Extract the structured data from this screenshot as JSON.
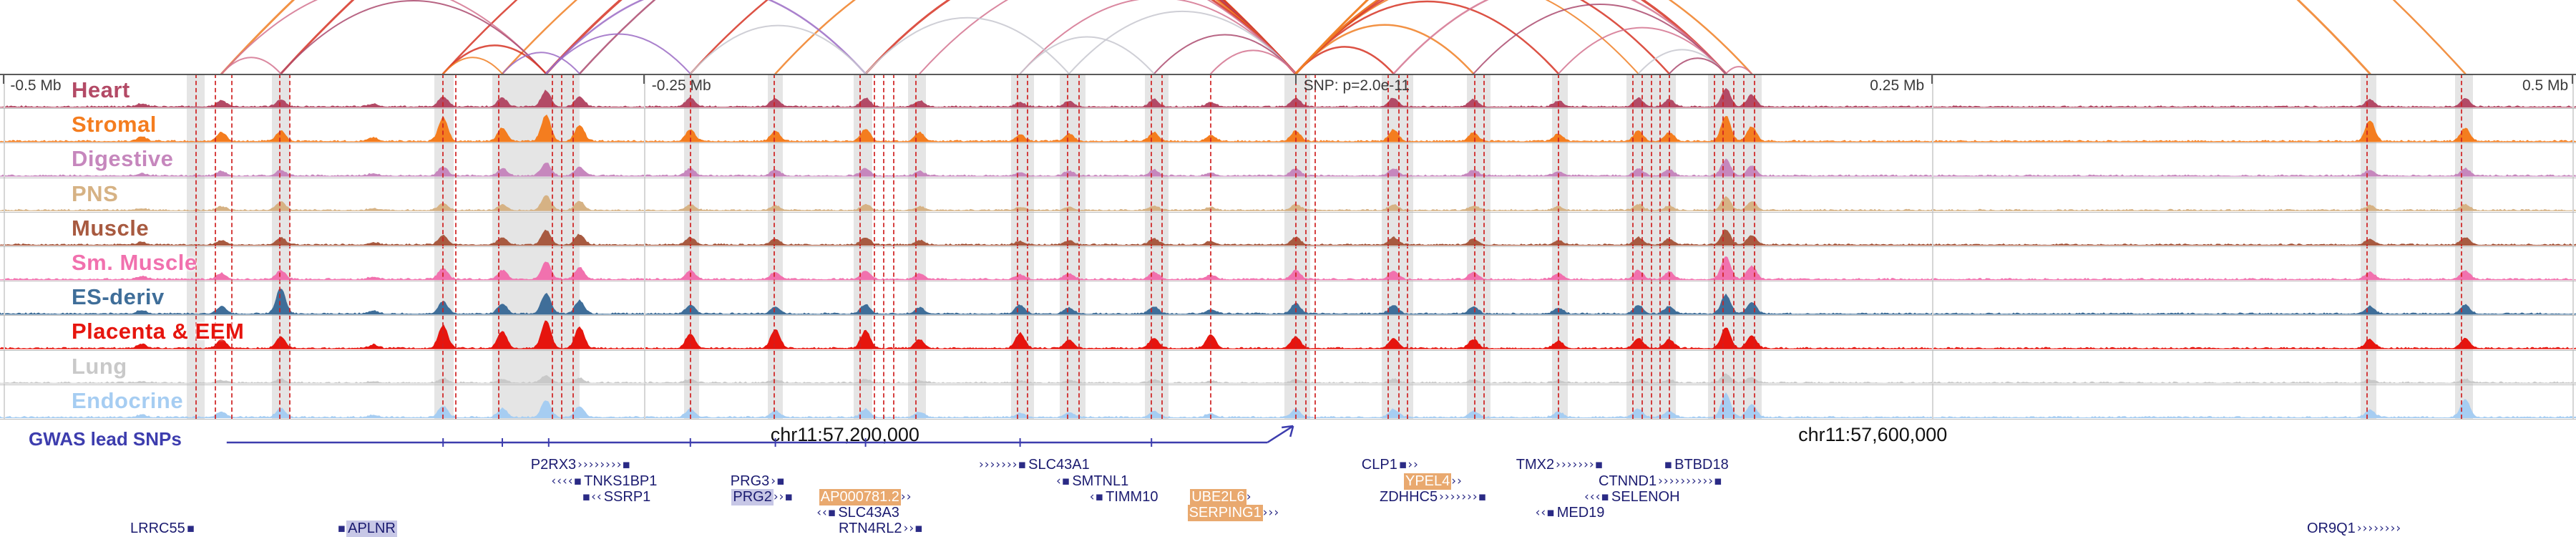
{
  "chart_data": {
    "type": "genome-tracks",
    "title": "Chromatin interaction and signal tracks around GWAS lead SNP",
    "ruler_ticks": [
      {
        "label": "-0.5 Mb",
        "x": 0.004,
        "anchor": "start"
      },
      {
        "label": "-0.25 Mb",
        "x": 0.253,
        "anchor": "start"
      },
      {
        "label": "SNP: p=2.0e-11",
        "x": 0.506,
        "anchor": "start"
      },
      {
        "label": "0.25 Mb",
        "x": 0.747,
        "anchor": "end"
      },
      {
        "label": "0.5 Mb",
        "x": 0.997,
        "anchor": "end"
      }
    ],
    "tick_marks": [
      0.0015,
      0.25,
      0.503,
      0.75,
      0.9985
    ],
    "grid_lines": [
      0.0015,
      0.25,
      0.75,
      0.9985
    ],
    "coordinate_labels": [
      {
        "label": "chr11:57,200,000",
        "x": 0.328
      },
      {
        "label": "chr11:57,600,000",
        "x": 0.727
      }
    ],
    "gwas_track": {
      "label": "GWAS lead SNPs",
      "color": "#3d3dae",
      "line_start": 0.088,
      "line_end": 0.492,
      "arrow_x": 0.502,
      "ticks": [
        0.172,
        0.195,
        0.213,
        0.268,
        0.301,
        0.336,
        0.396,
        0.447
      ]
    },
    "peak_positions": [
      0.055,
      0.086,
      0.109,
      0.145,
      0.172,
      0.195,
      0.212,
      0.225,
      0.268,
      0.301,
      0.336,
      0.357,
      0.396,
      0.415,
      0.448,
      0.47,
      0.503,
      0.541,
      0.572,
      0.605,
      0.636,
      0.648,
      0.67,
      0.68,
      0.92,
      0.957
    ],
    "peak_width": 9,
    "tracks": [
      {
        "label": "Heart",
        "color": "#b34a66",
        "amps": [
          0.1,
          0.22,
          0.25,
          0.1,
          0.35,
          0.3,
          0.55,
          0.35,
          0.3,
          0.28,
          0.3,
          0.2,
          0.15,
          0.2,
          0.25,
          0.15,
          0.3,
          0.3,
          0.25,
          0.2,
          0.3,
          0.25,
          0.62,
          0.4,
          0.25,
          0.3
        ]
      },
      {
        "label": "Stromal",
        "color": "#f47d1f",
        "amps": [
          0.15,
          0.3,
          0.35,
          0.12,
          0.8,
          0.45,
          0.9,
          0.55,
          0.4,
          0.35,
          0.42,
          0.3,
          0.22,
          0.25,
          0.3,
          0.2,
          0.35,
          0.4,
          0.3,
          0.25,
          0.35,
          0.3,
          0.88,
          0.5,
          0.72,
          0.45
        ]
      },
      {
        "label": "Digestive",
        "color": "#c687bd",
        "amps": [
          0.08,
          0.15,
          0.2,
          0.08,
          0.3,
          0.25,
          0.45,
          0.3,
          0.25,
          0.2,
          0.25,
          0.15,
          0.12,
          0.15,
          0.2,
          0.1,
          0.25,
          0.25,
          0.2,
          0.15,
          0.25,
          0.2,
          0.55,
          0.35,
          0.2,
          0.25
        ]
      },
      {
        "label": "PNS",
        "color": "#d6b284",
        "amps": [
          0.06,
          0.12,
          0.3,
          0.06,
          0.25,
          0.2,
          0.5,
          0.3,
          0.2,
          0.15,
          0.2,
          0.12,
          0.1,
          0.12,
          0.15,
          0.1,
          0.2,
          0.2,
          0.15,
          0.12,
          0.2,
          0.15,
          0.45,
          0.3,
          0.15,
          0.2
        ]
      },
      {
        "label": "Muscle",
        "color": "#a85a40",
        "amps": [
          0.08,
          0.15,
          0.25,
          0.08,
          0.32,
          0.25,
          0.5,
          0.35,
          0.25,
          0.2,
          0.25,
          0.15,
          0.12,
          0.15,
          0.2,
          0.12,
          0.25,
          0.25,
          0.2,
          0.15,
          0.25,
          0.2,
          0.52,
          0.32,
          0.2,
          0.25
        ]
      },
      {
        "label": "Sm. Muscle",
        "color": "#f171ae",
        "amps": [
          0.1,
          0.2,
          0.3,
          0.08,
          0.38,
          0.3,
          0.6,
          0.4,
          0.3,
          0.25,
          0.3,
          0.2,
          0.15,
          0.2,
          0.25,
          0.15,
          0.3,
          0.3,
          0.25,
          0.2,
          0.3,
          0.25,
          0.78,
          0.45,
          0.25,
          0.3
        ]
      },
      {
        "label": "ES-deriv",
        "color": "#3f6e99",
        "amps": [
          0.12,
          0.25,
          0.88,
          0.1,
          0.42,
          0.35,
          0.7,
          0.45,
          0.3,
          0.25,
          0.32,
          0.2,
          0.3,
          0.2,
          0.25,
          0.15,
          0.35,
          0.3,
          0.25,
          0.2,
          0.3,
          0.25,
          0.65,
          0.4,
          0.25,
          0.3
        ]
      },
      {
        "label": "Placenta & EEM",
        "color": "#e6150e",
        "amps": [
          0.15,
          0.3,
          0.4,
          0.12,
          0.78,
          0.58,
          0.95,
          0.72,
          0.5,
          0.65,
          0.6,
          0.3,
          0.52,
          0.3,
          0.35,
          0.48,
          0.4,
          0.35,
          0.3,
          0.25,
          0.35,
          0.3,
          0.72,
          0.45,
          0.3,
          0.35
        ]
      },
      {
        "label": "Lung",
        "color": "#c9c9c9",
        "amps": [
          0.04,
          0.08,
          0.12,
          0.05,
          0.15,
          0.12,
          0.25,
          0.15,
          0.12,
          0.1,
          0.12,
          0.08,
          0.06,
          0.08,
          0.1,
          0.06,
          0.12,
          0.12,
          0.1,
          0.08,
          0.12,
          0.1,
          0.3,
          0.18,
          0.1,
          0.12
        ]
      },
      {
        "label": "Endocrine",
        "color": "#a6cdf2",
        "amps": [
          0.08,
          0.18,
          0.3,
          0.08,
          0.38,
          0.3,
          0.58,
          0.38,
          0.28,
          0.22,
          0.28,
          0.18,
          0.14,
          0.18,
          0.22,
          0.14,
          0.28,
          0.28,
          0.22,
          0.18,
          0.28,
          0.22,
          0.82,
          0.45,
          0.25,
          0.62
        ]
      }
    ],
    "snp_lines": [
      0.076,
      0.0835,
      0.09,
      0.1085,
      0.1125,
      0.172,
      0.177,
      0.1935,
      0.2145,
      0.218,
      0.2225,
      0.268,
      0.3005,
      0.334,
      0.3395,
      0.343,
      0.347,
      0.3555,
      0.395,
      0.399,
      0.4145,
      0.419,
      0.447,
      0.451,
      0.47,
      0.503,
      0.507,
      0.5105,
      0.539,
      0.543,
      0.5465,
      0.5725,
      0.576,
      0.605,
      0.634,
      0.6375,
      0.641,
      0.6445,
      0.648,
      0.6655,
      0.669,
      0.673,
      0.677,
      0.681,
      0.919,
      0.9555
    ],
    "highlight_bands": [
      [
        0.0725,
        0.007
      ],
      [
        0.1055,
        0.007
      ],
      [
        0.1685,
        0.0075
      ],
      [
        0.191,
        0.034
      ],
      [
        0.2655,
        0.006
      ],
      [
        0.298,
        0.006
      ],
      [
        0.3315,
        0.007
      ],
      [
        0.3525,
        0.007
      ],
      [
        0.3925,
        0.009
      ],
      [
        0.4115,
        0.01
      ],
      [
        0.4445,
        0.009
      ],
      [
        0.4985,
        0.01
      ],
      [
        0.5365,
        0.012
      ],
      [
        0.5695,
        0.009
      ],
      [
        0.6025,
        0.006
      ],
      [
        0.6315,
        0.019
      ],
      [
        0.663,
        0.021
      ],
      [
        0.9165,
        0.006
      ],
      [
        0.953,
        0.007
      ]
    ],
    "arc_colors": {
      "rd": "#d63425",
      "or": "#f07f24",
      "pk": "#d4738f",
      "mr": "#ac4a6e",
      "pu": "#9b6bc4",
      "gy": "#c7c7cf"
    },
    "arcs": [
      [
        0.086,
        0.503,
        "or",
        3
      ],
      [
        0.109,
        0.503,
        "rd",
        3
      ],
      [
        0.172,
        0.503,
        "rd",
        2.5
      ],
      [
        0.195,
        0.503,
        "or",
        2.5
      ],
      [
        0.212,
        0.503,
        "rd",
        3.5
      ],
      [
        0.225,
        0.503,
        "mr",
        2.5
      ],
      [
        0.268,
        0.503,
        "rd",
        2.5
      ],
      [
        0.301,
        0.503,
        "or",
        2.5
      ],
      [
        0.336,
        0.503,
        "rd",
        3
      ],
      [
        0.357,
        0.503,
        "pk",
        2
      ],
      [
        0.396,
        0.503,
        "pk",
        2
      ],
      [
        0.415,
        0.503,
        "gy",
        2
      ],
      [
        0.448,
        0.503,
        "mr",
        2
      ],
      [
        0.47,
        0.503,
        "pk",
        2
      ],
      [
        0.503,
        0.541,
        "rd",
        2.5
      ],
      [
        0.503,
        0.572,
        "or",
        2.5
      ],
      [
        0.503,
        0.605,
        "rd",
        2.5
      ],
      [
        0.503,
        0.636,
        "or",
        2
      ],
      [
        0.503,
        0.648,
        "rd",
        2.5
      ],
      [
        0.503,
        0.67,
        "rd",
        3.5
      ],
      [
        0.503,
        0.68,
        "or",
        2.5
      ],
      [
        0.503,
        0.92,
        "or",
        3
      ],
      [
        0.503,
        0.957,
        "or",
        2.5
      ],
      [
        0.086,
        0.212,
        "pk",
        2
      ],
      [
        0.109,
        0.212,
        "mr",
        2
      ],
      [
        0.172,
        0.212,
        "rd",
        2.5
      ],
      [
        0.195,
        0.225,
        "pu",
        2
      ],
      [
        0.212,
        0.268,
        "pu",
        2
      ],
      [
        0.212,
        0.336,
        "pu",
        2.5
      ],
      [
        0.268,
        0.336,
        "gy",
        2
      ],
      [
        0.336,
        0.415,
        "gy",
        2
      ],
      [
        0.396,
        0.448,
        "gy",
        2
      ],
      [
        0.541,
        0.67,
        "pk",
        2.5
      ],
      [
        0.572,
        0.67,
        "mr",
        2
      ],
      [
        0.605,
        0.67,
        "pk",
        2
      ],
      [
        0.636,
        0.67,
        "gy",
        2
      ],
      [
        0.648,
        0.67,
        "mr",
        2
      ],
      [
        0.67,
        0.68,
        "pk",
        2
      ],
      [
        0.086,
        0.109,
        "pk",
        2
      ],
      [
        0.172,
        0.195,
        "or",
        2
      ]
    ],
    "genes": [
      {
        "name": "P2RX3",
        "x": 0.2055,
        "row": 0,
        "side": "after",
        "glyph": "››››››››▪",
        "hl": "none"
      },
      {
        "name": "SLC43A1",
        "x": 0.38,
        "row": 0,
        "side": "before",
        "glyph": "›››››››▪",
        "hl": "none"
      },
      {
        "name": "CLP1",
        "x": 0.528,
        "row": 0,
        "side": "after",
        "glyph": "▪››",
        "hl": "none"
      },
      {
        "name": "TMX2",
        "x": 0.588,
        "row": 0,
        "side": "after",
        "glyph": "›››››››▪",
        "hl": "none"
      },
      {
        "name": "BTBD18",
        "x": 0.646,
        "row": 0,
        "side": "before",
        "glyph": "▪",
        "hl": "none"
      },
      {
        "name": "TNKS1BP1",
        "x": 0.214,
        "row": 1,
        "side": "before",
        "glyph": "‹‹‹‹▪",
        "hl": "none"
      },
      {
        "name": "PRG3",
        "x": 0.283,
        "row": 1,
        "side": "after",
        "glyph": "›▪",
        "hl": "none"
      },
      {
        "name": "SMTNL1",
        "x": 0.41,
        "row": 1,
        "side": "before",
        "glyph": "‹▪",
        "hl": "none"
      },
      {
        "name": "YPEL4",
        "x": 0.545,
        "row": 1,
        "side": "after",
        "glyph": "››",
        "hl": "tan"
      },
      {
        "name": "CTNND1",
        "x": 0.62,
        "row": 1,
        "side": "after",
        "glyph": "››››››››››▪",
        "hl": "none"
      },
      {
        "name": "SSRP1",
        "x": 0.226,
        "row": 2,
        "side": "before",
        "glyph": "▪‹‹",
        "hl": "none"
      },
      {
        "name": "PRG2",
        "x": 0.284,
        "row": 2,
        "side": "after",
        "glyph": "››▪",
        "hl": "lavender"
      },
      {
        "name": "AP000781.2",
        "x": 0.318,
        "row": 2,
        "side": "after",
        "glyph": "››",
        "hl": "tan"
      },
      {
        "name": "TIMM10",
        "x": 0.423,
        "row": 2,
        "side": "before",
        "glyph": "‹▪",
        "hl": "none"
      },
      {
        "name": "UBE2L6",
        "x": 0.462,
        "row": 2,
        "side": "after",
        "glyph": "›",
        "hl": "tan"
      },
      {
        "name": "ZDHHC5",
        "x": 0.535,
        "row": 2,
        "side": "after",
        "glyph": "›››››››▪",
        "hl": "none"
      },
      {
        "name": "SELENOH",
        "x": 0.615,
        "row": 2,
        "side": "before",
        "glyph": "‹‹‹▪",
        "hl": "none"
      },
      {
        "name": "SLC43A3",
        "x": 0.317,
        "row": 3,
        "side": "before",
        "glyph": "‹‹▪",
        "hl": "none"
      },
      {
        "name": "SERPING1",
        "x": 0.461,
        "row": 3,
        "side": "after",
        "glyph": "›››",
        "hl": "tan"
      },
      {
        "name": "MED19",
        "x": 0.596,
        "row": 3,
        "side": "before",
        "glyph": "‹‹▪",
        "hl": "none"
      },
      {
        "name": "LRRC55",
        "x": 0.05,
        "row": 4,
        "side": "after",
        "glyph": "▪",
        "hl": "none"
      },
      {
        "name": "APLNR",
        "x": 0.131,
        "row": 4,
        "side": "before",
        "glyph": "▪",
        "hl": "lavender"
      },
      {
        "name": "RTN4RL2",
        "x": 0.325,
        "row": 4,
        "side": "after",
        "glyph": "››▪",
        "hl": "none"
      },
      {
        "name": "OR9Q1",
        "x": 0.895,
        "row": 4,
        "side": "after",
        "glyph": "››››››››",
        "hl": "none"
      }
    ]
  }
}
